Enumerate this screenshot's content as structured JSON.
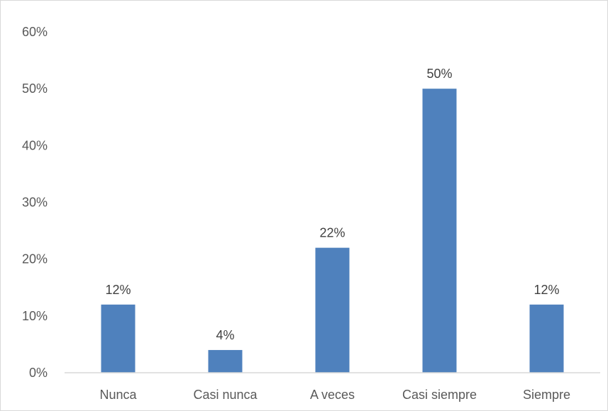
{
  "chart_data": {
    "type": "bar",
    "categories": [
      "Nunca",
      "Casi nunca",
      "A veces",
      "Casi siempre",
      "Siempre"
    ],
    "values": [
      12,
      4,
      22,
      50,
      12
    ],
    "value_labels": [
      "12%",
      "4%",
      "22%",
      "50%",
      "12%"
    ],
    "yticks": [
      0,
      10,
      20,
      30,
      40,
      50,
      60
    ],
    "ytick_labels": [
      "0%",
      "10%",
      "20%",
      "30%",
      "40%",
      "50%",
      "60%"
    ],
    "ylim": [
      0,
      60
    ],
    "title": "",
    "xlabel": "",
    "ylabel": "",
    "grid": false,
    "legend": "none",
    "colors": {
      "bar": "#4f81bd",
      "axis": "#d9d9d9"
    }
  }
}
